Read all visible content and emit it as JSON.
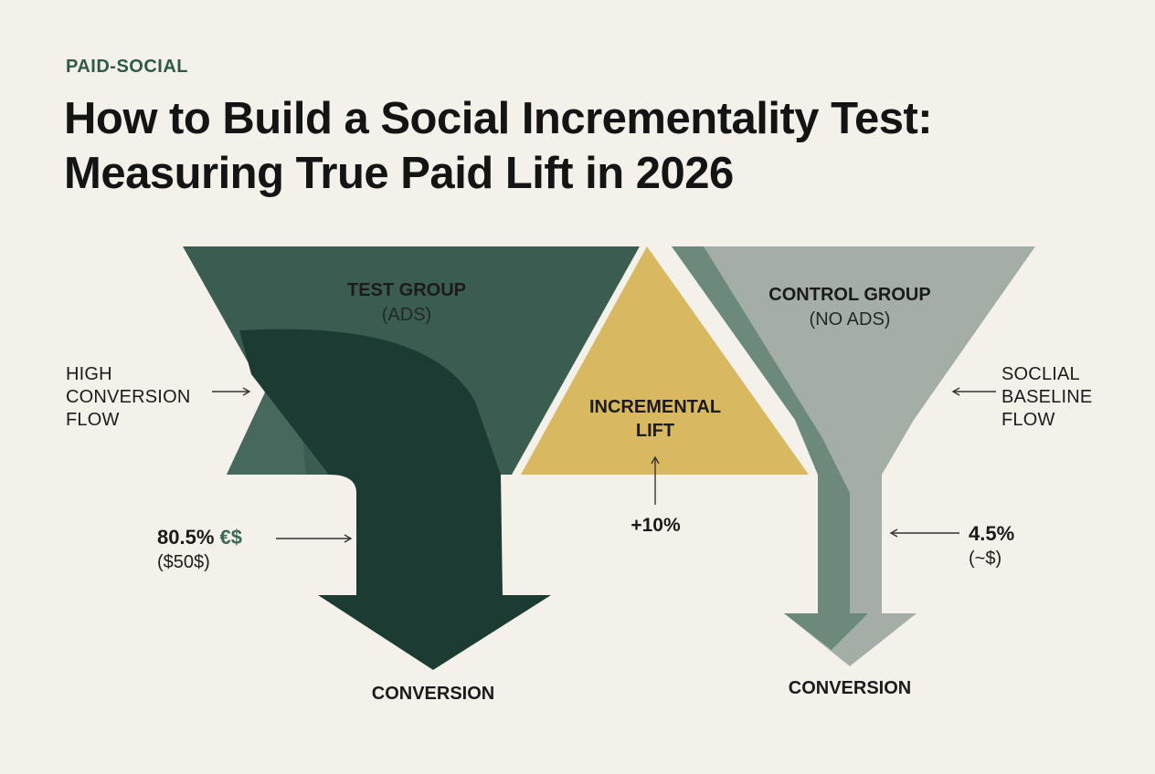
{
  "eyebrow": "PAID-SOCIAL",
  "title": "How to Build a Social Incrementality Test: Measuring True Paid Lift in 2026",
  "test_group": {
    "title": "TEST GROUP",
    "subtitle": "(ADS)",
    "side_label": [
      "HIGH",
      "CONVERSION",
      "FLOW"
    ],
    "metric_value": "80.5%",
    "metric_symbol": "€$",
    "metric_sub": "($50$)",
    "outcome": "CONVERSION"
  },
  "incremental": {
    "title_line1": "INCREMENTAL",
    "title_line2": "LIFT",
    "value": "+10%"
  },
  "control_group": {
    "title": "CONTROL GROUP",
    "subtitle": "(NO ADS)",
    "side_label": [
      "SOCLIAL",
      "BASELINE",
      "FLOW"
    ],
    "metric_value": "4.5%",
    "metric_sub": "(~$)",
    "outcome": "CONVERSION"
  },
  "colors": {
    "background": "#f4f1ea",
    "test_dark": "#1c3b32",
    "test_mid": "#3b5c50",
    "test_light": "#47695d",
    "lift": "#d9b95f",
    "control_light": "#a3aea6",
    "control_mid": "#6b8a7c",
    "accent_text": "#2f5a47"
  }
}
